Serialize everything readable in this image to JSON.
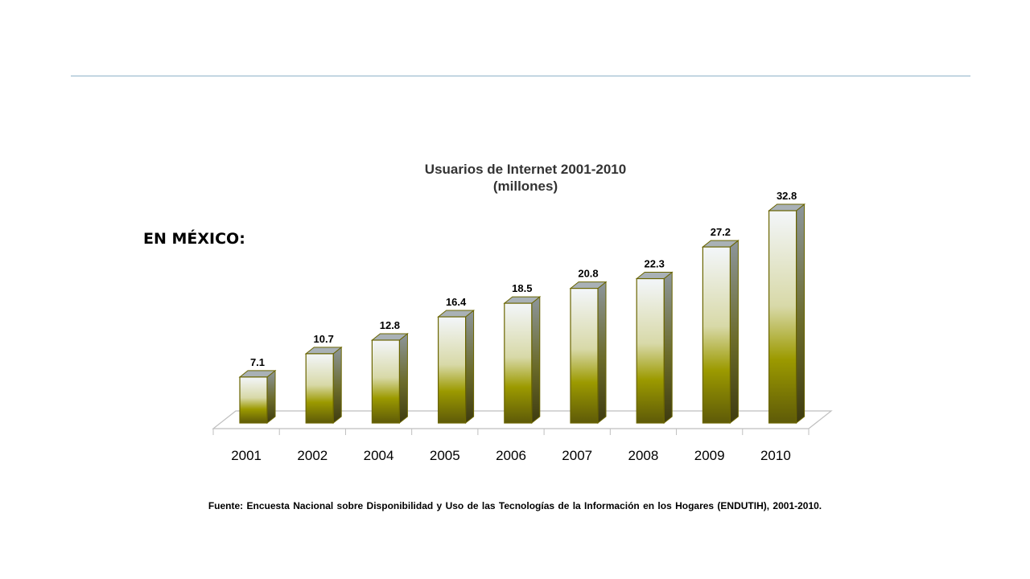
{
  "slide": {
    "heading": "EN MÉXICO:",
    "source": "Fuente: Encuesta Nacional sobre Disponibilidad y Uso de las Tecnologías de la Información en los Hogares (ENDUTIH),  2001-2010."
  },
  "chart_data": {
    "type": "bar",
    "style": "3d-column",
    "title": "Usuarios de Internet 2001-2010",
    "subtitle": "(millones)",
    "categories": [
      "2001",
      "2002",
      "2004",
      "2005",
      "2006",
      "2007",
      "2008",
      "2009",
      "2010"
    ],
    "values": [
      7.1,
      10.7,
      12.8,
      16.4,
      18.5,
      20.8,
      22.3,
      27.2,
      32.8
    ],
    "data_labels": [
      "7.1",
      "10.7",
      "12.8",
      "16.4",
      "18.5",
      "20.8",
      "22.3",
      "27.2",
      "32.8"
    ],
    "xlabel": "",
    "ylabel": "",
    "ylim": [
      0,
      32.8
    ],
    "grid": false,
    "legend": "none",
    "colors": {
      "bar_top_light": "#f3f6fa",
      "bar_mid": "#9c9a00",
      "bar_bottom": "#5e5a08",
      "bar_outline": "#6a6500",
      "bar_top_face": "#a9b1b6",
      "bar_side_top": "#8d969c",
      "bar_side_bottom": "#3e3b10",
      "floor_line": "#bfbfbf"
    }
  }
}
